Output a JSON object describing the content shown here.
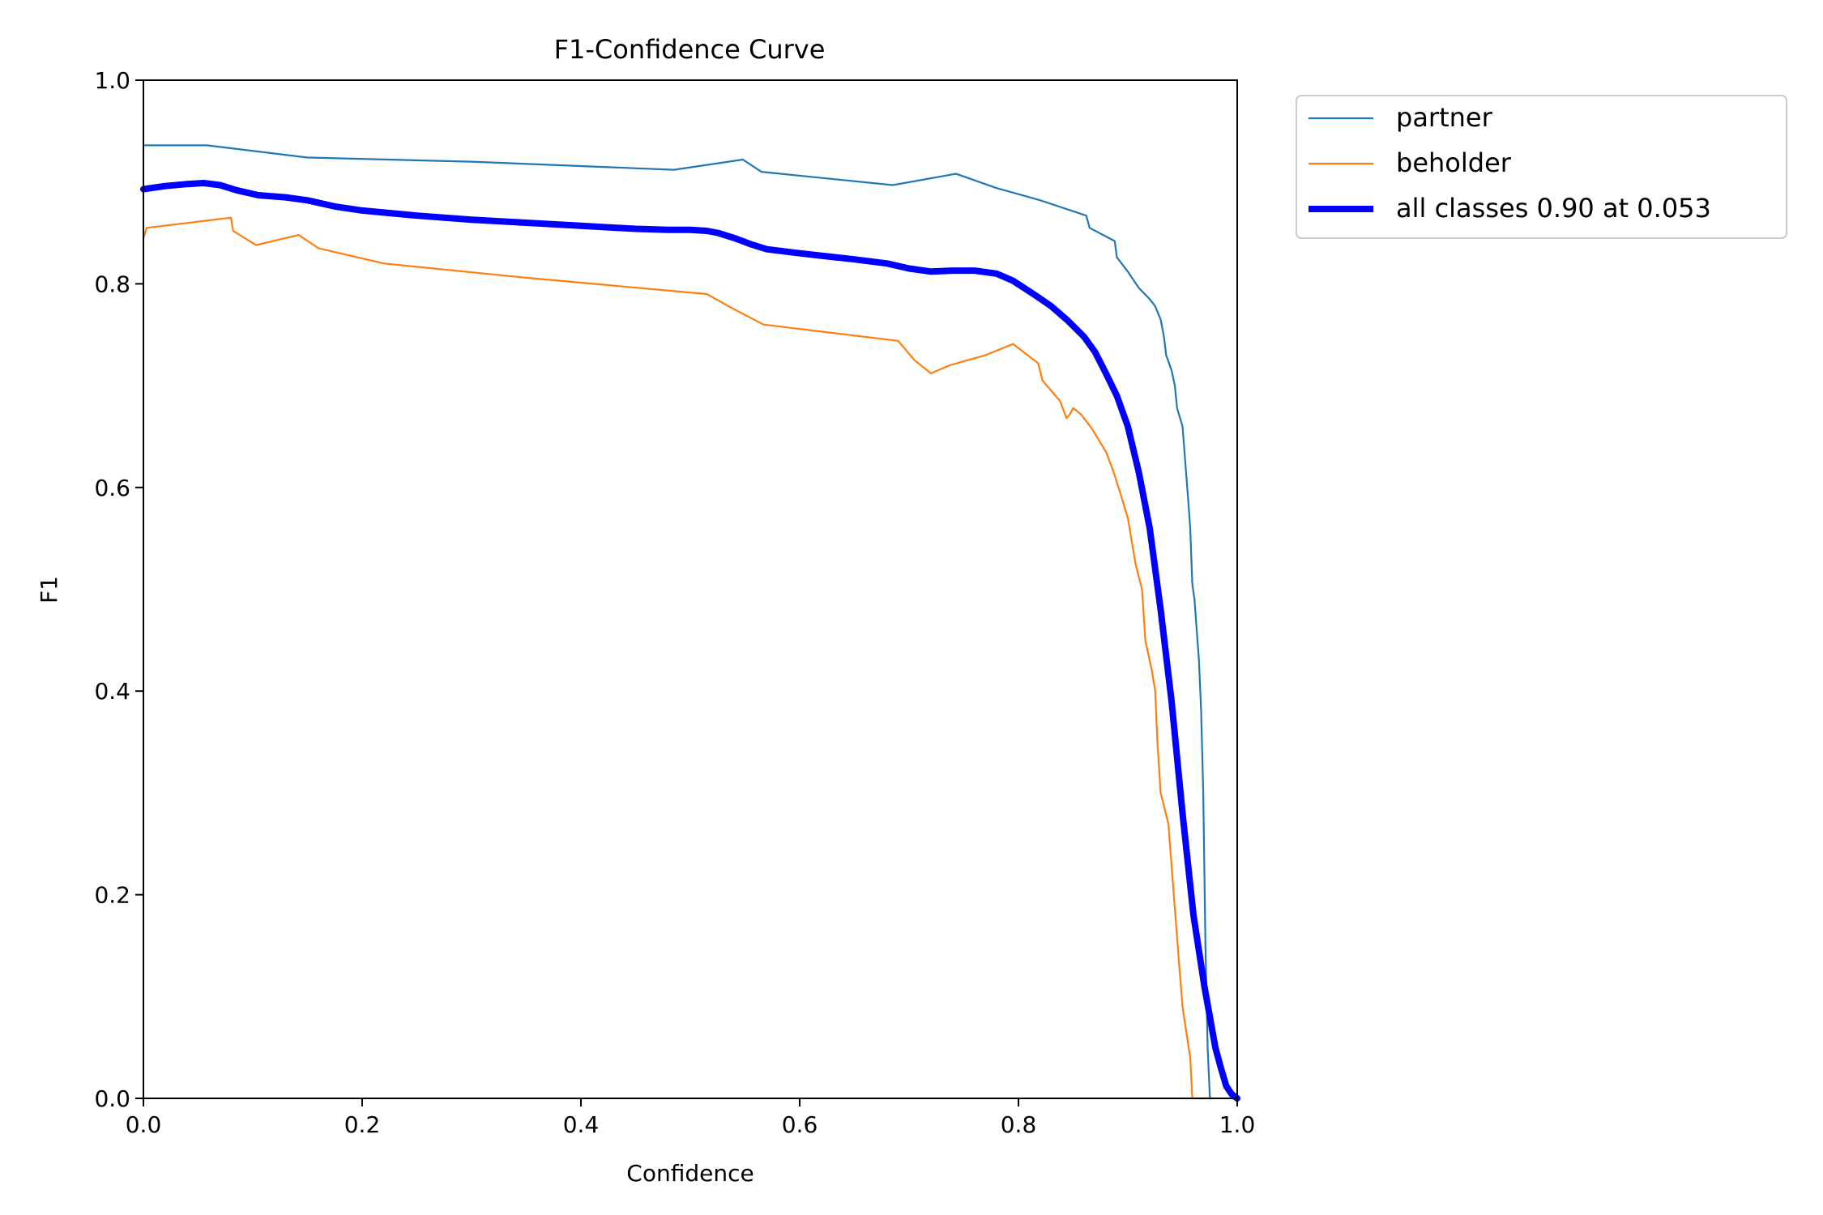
{
  "chart_data": {
    "type": "line",
    "title": "F1-Confidence Curve",
    "xlabel": "Confidence",
    "ylabel": "F1",
    "xlim": [
      0.0,
      1.0
    ],
    "ylim": [
      0.0,
      1.0
    ],
    "xticks": [
      "0.0",
      "0.2",
      "0.4",
      "0.6",
      "0.8",
      "1.0"
    ],
    "yticks": [
      "0.0",
      "0.2",
      "0.4",
      "0.6",
      "0.8",
      "1.0"
    ],
    "grid": false,
    "legend_position": "outside top-right",
    "series": [
      {
        "name": "partner",
        "color": "#1f77b4",
        "style": "thin",
        "x": [
          0.0,
          0.01,
          0.058,
          0.15,
          0.3,
          0.485,
          0.548,
          0.565,
          0.685,
          0.743,
          0.78,
          0.82,
          0.862,
          0.865,
          0.888,
          0.89,
          0.9,
          0.91,
          0.92,
          0.925,
          0.93,
          0.933,
          0.935,
          0.94,
          0.943,
          0.945,
          0.95,
          0.955,
          0.957,
          0.959,
          0.961,
          0.963,
          0.965,
          0.967,
          0.969,
          0.971,
          0.973,
          0.975,
          0.977
        ],
        "y": [
          0.936,
          0.936,
          0.936,
          0.924,
          0.92,
          0.912,
          0.922,
          0.91,
          0.897,
          0.908,
          0.894,
          0.882,
          0.867,
          0.855,
          0.842,
          0.826,
          0.812,
          0.796,
          0.785,
          0.778,
          0.765,
          0.748,
          0.73,
          0.715,
          0.7,
          0.678,
          0.66,
          0.59,
          0.56,
          0.505,
          0.49,
          0.46,
          0.43,
          0.38,
          0.3,
          0.15,
          0.05,
          0.0,
          0.0
        ]
      },
      {
        "name": "beholder",
        "color": "#ff7f0e",
        "style": "thin",
        "x": [
          0.0,
          0.003,
          0.08,
          0.082,
          0.103,
          0.142,
          0.16,
          0.22,
          0.35,
          0.515,
          0.54,
          0.567,
          0.69,
          0.705,
          0.72,
          0.737,
          0.77,
          0.795,
          0.818,
          0.822,
          0.838,
          0.844,
          0.847,
          0.85,
          0.857,
          0.862,
          0.867,
          0.88,
          0.887,
          0.893,
          0.9,
          0.907,
          0.913,
          0.916,
          0.922,
          0.925,
          0.927,
          0.93,
          0.937,
          0.942,
          0.947,
          0.95,
          0.957,
          0.959,
          0.962,
          0.98
        ],
        "y": [
          0.845,
          0.855,
          0.865,
          0.852,
          0.838,
          0.848,
          0.835,
          0.82,
          0.806,
          0.79,
          0.775,
          0.76,
          0.744,
          0.725,
          0.712,
          0.72,
          0.73,
          0.741,
          0.722,
          0.705,
          0.685,
          0.668,
          0.672,
          0.678,
          0.672,
          0.665,
          0.658,
          0.635,
          0.615,
          0.595,
          0.57,
          0.525,
          0.5,
          0.45,
          0.42,
          0.4,
          0.35,
          0.3,
          0.27,
          0.2,
          0.13,
          0.09,
          0.04,
          0.0,
          0.0,
          0.0
        ]
      },
      {
        "name": "all classes 0.90 at 0.053",
        "color": "#0000ff",
        "style": "thick",
        "x": [
          0.0,
          0.02,
          0.04,
          0.055,
          0.07,
          0.085,
          0.105,
          0.13,
          0.15,
          0.175,
          0.2,
          0.25,
          0.3,
          0.35,
          0.4,
          0.45,
          0.48,
          0.5,
          0.515,
          0.525,
          0.54,
          0.555,
          0.57,
          0.585,
          0.6,
          0.625,
          0.65,
          0.68,
          0.7,
          0.72,
          0.74,
          0.76,
          0.78,
          0.795,
          0.805,
          0.815,
          0.83,
          0.845,
          0.86,
          0.87,
          0.88,
          0.89,
          0.9,
          0.91,
          0.92,
          0.93,
          0.94,
          0.95,
          0.96,
          0.97,
          0.98,
          0.985,
          0.99,
          0.995,
          1.0
        ],
        "y": [
          0.893,
          0.896,
          0.898,
          0.899,
          0.897,
          0.892,
          0.887,
          0.885,
          0.882,
          0.876,
          0.872,
          0.867,
          0.863,
          0.86,
          0.857,
          0.854,
          0.853,
          0.853,
          0.852,
          0.85,
          0.845,
          0.839,
          0.834,
          0.832,
          0.83,
          0.827,
          0.824,
          0.82,
          0.815,
          0.812,
          0.813,
          0.813,
          0.81,
          0.803,
          0.796,
          0.789,
          0.778,
          0.764,
          0.748,
          0.733,
          0.712,
          0.69,
          0.66,
          0.615,
          0.56,
          0.48,
          0.39,
          0.28,
          0.18,
          0.11,
          0.05,
          0.03,
          0.012,
          0.004,
          0.0
        ]
      }
    ]
  }
}
